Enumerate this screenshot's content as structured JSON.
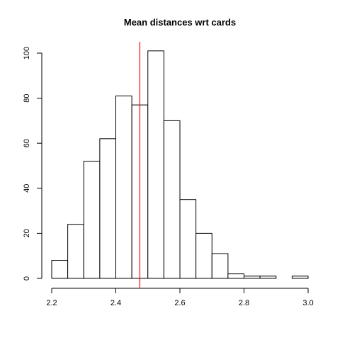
{
  "chart_data": {
    "type": "bar",
    "title": "Mean distances wrt cards",
    "xlabel": "",
    "ylabel": "",
    "bins": [
      2.2,
      2.25,
      2.3,
      2.35,
      2.4,
      2.45,
      2.5,
      2.55,
      2.6,
      2.65,
      2.7,
      2.75,
      2.8,
      2.85,
      2.9,
      2.95,
      3.0
    ],
    "counts": [
      8,
      24,
      52,
      62,
      81,
      77,
      101,
      70,
      35,
      20,
      11,
      2,
      1,
      1,
      0,
      1
    ],
    "xlim": [
      2.2,
      3.0
    ],
    "ylim": [
      0,
      100
    ],
    "xticks": [
      2.2,
      2.4,
      2.6,
      2.8,
      3.0
    ],
    "xtick_labels": [
      "2.2",
      "2.4",
      "2.6",
      "2.8",
      "3.0"
    ],
    "yticks": [
      0,
      20,
      40,
      60,
      80,
      100
    ],
    "ytick_labels": [
      "0",
      "20",
      "40",
      "60",
      "80",
      "100"
    ],
    "reference_line": {
      "x": 2.475,
      "color": "#ff0000"
    },
    "bar_fill": "#ffffff",
    "bar_stroke": "#000000",
    "grid": false,
    "legend": "none"
  }
}
